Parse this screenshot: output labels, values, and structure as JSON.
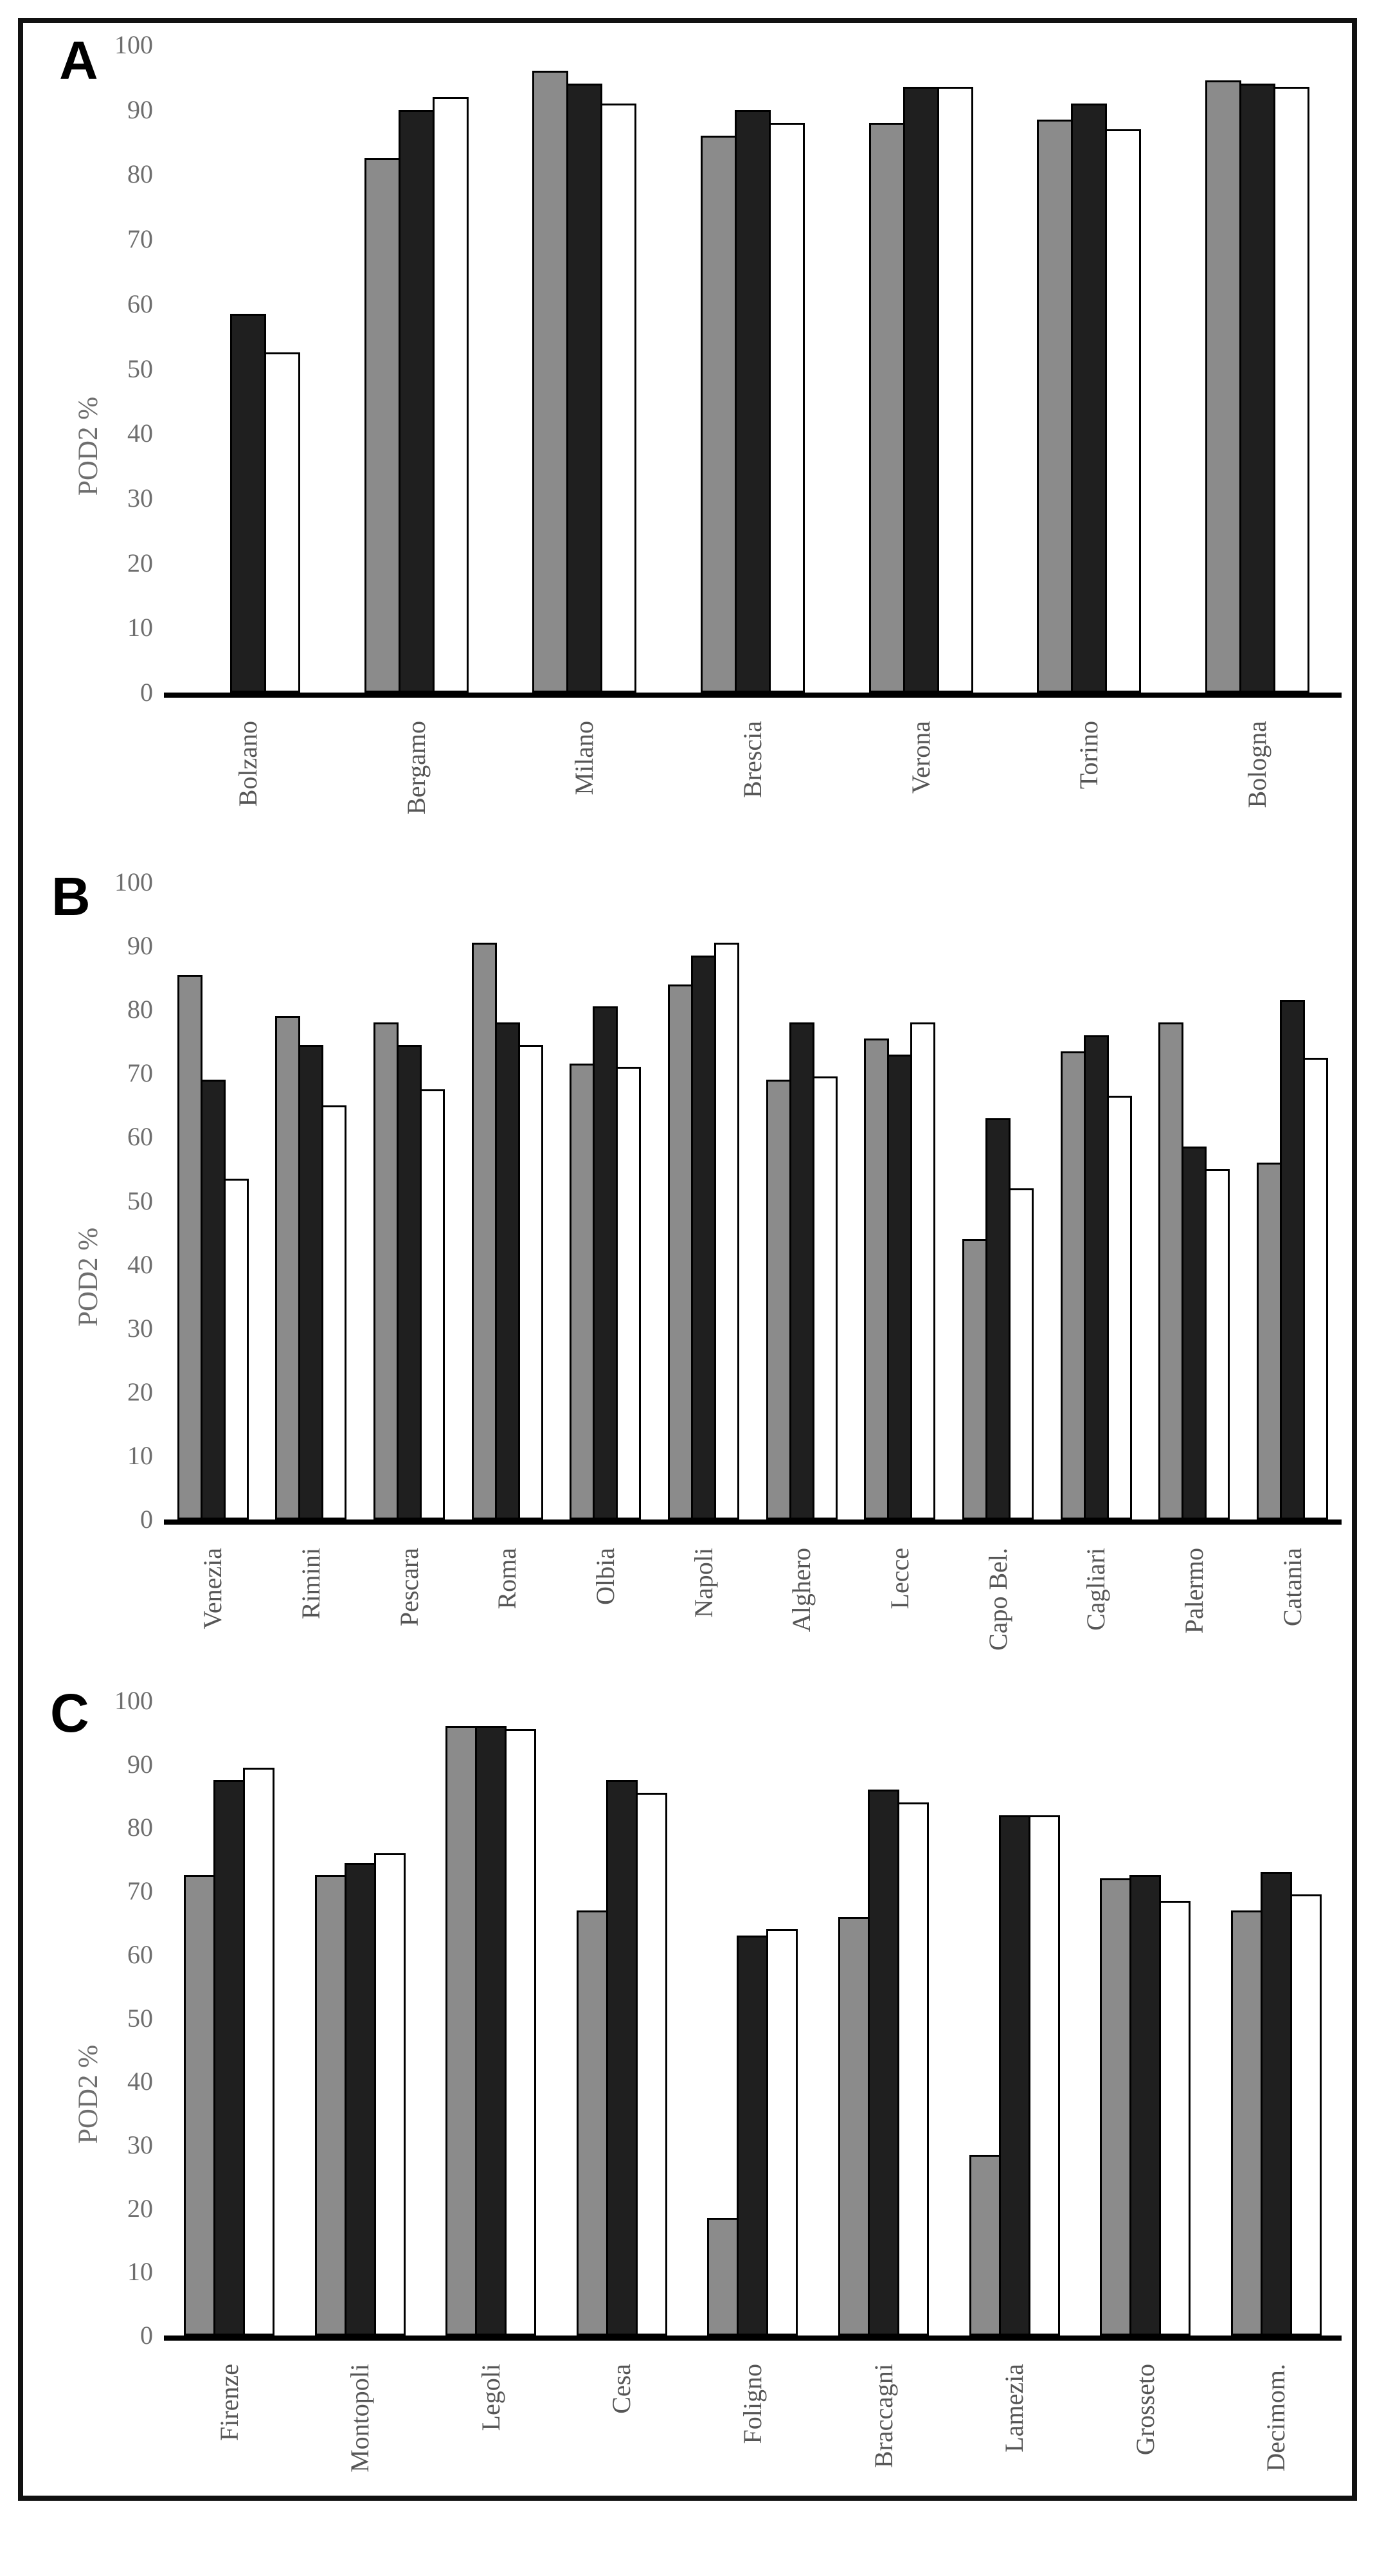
{
  "figure": {
    "border_color": "#111111",
    "background": "#ffffff"
  },
  "colors": {
    "bar_gray": "#8b8b8b",
    "bar_black": "#1f1f1f",
    "bar_white": "#ffffff",
    "bar_outline": "#000000",
    "tick_text": "#6e6e6e",
    "category_text": "#565656",
    "panel_letter": "#000000"
  },
  "y_axis": {
    "label": "POD2 %",
    "ticks": [
      0,
      10,
      20,
      30,
      40,
      50,
      60,
      70,
      80,
      90,
      100
    ]
  },
  "chart_data": [
    {
      "type": "bar",
      "panel": "A",
      "title": "",
      "xlabel": "",
      "ylabel": "POD2 %",
      "ylim": [
        0,
        100
      ],
      "grid": false,
      "legend_position": "none",
      "categories": [
        "Bolzano",
        "Bergamo",
        "Milano",
        "Brescia",
        "Verona",
        "Torino",
        "Bologna"
      ],
      "series": [
        {
          "name": "gray-series",
          "fill": "#8b8b8b",
          "values": [
            0,
            82.5,
            96,
            86,
            88,
            88.5,
            94.5
          ]
        },
        {
          "name": "black-series",
          "fill": "#1f1f1f",
          "values": [
            58.5,
            90,
            94,
            90,
            93.5,
            91,
            94
          ]
        },
        {
          "name": "white-series",
          "fill": "#ffffff",
          "values": [
            52.5,
            92,
            91,
            88,
            93.5,
            87,
            93.5
          ]
        }
      ]
    },
    {
      "type": "bar",
      "panel": "B",
      "title": "",
      "xlabel": "",
      "ylabel": "POD2 %",
      "ylim": [
        0,
        100
      ],
      "grid": false,
      "legend_position": "none",
      "categories": [
        "Venezia",
        "Rimini",
        "Pescara",
        "Roma",
        "Olbia",
        "Napoli",
        "Alghero",
        "Lecce",
        "Capo Bel.",
        "Cagliari",
        "Palermo",
        "Catania"
      ],
      "series": [
        {
          "name": "gray-series",
          "fill": "#8b8b8b",
          "values": [
            85.5,
            79,
            78,
            90.5,
            71.5,
            84,
            69,
            75.5,
            44,
            73.5,
            78,
            56
          ]
        },
        {
          "name": "black-series",
          "fill": "#1f1f1f",
          "values": [
            69,
            74.5,
            74.5,
            78,
            80.5,
            88.5,
            78,
            73,
            63,
            76,
            58.5,
            81.5
          ]
        },
        {
          "name": "white-series",
          "fill": "#ffffff",
          "values": [
            53.5,
            65,
            67.5,
            74.5,
            71,
            90.5,
            69.5,
            78,
            52,
            66.5,
            55,
            72.5
          ]
        }
      ]
    },
    {
      "type": "bar",
      "panel": "C",
      "title": "",
      "xlabel": "",
      "ylabel": "POD2 %",
      "ylim": [
        0,
        100
      ],
      "grid": false,
      "legend_position": "none",
      "categories": [
        "Firenze",
        "Montopoli",
        "Legoli",
        "Cesa",
        "Foligno",
        "Braccagni",
        "Lamezia",
        "Grosseto",
        "Decimom."
      ],
      "series": [
        {
          "name": "gray-series",
          "fill": "#8b8b8b",
          "values": [
            72.5,
            72.5,
            96,
            67,
            18.5,
            66,
            28.5,
            72,
            67
          ]
        },
        {
          "name": "black-series",
          "fill": "#1f1f1f",
          "values": [
            87.5,
            74.5,
            96,
            87.5,
            63,
            86,
            82,
            72.5,
            73
          ]
        },
        {
          "name": "white-series",
          "fill": "#ffffff",
          "values": [
            89.5,
            76,
            95.5,
            85.5,
            64,
            84,
            82,
            68.5,
            69.5
          ]
        }
      ]
    }
  ]
}
